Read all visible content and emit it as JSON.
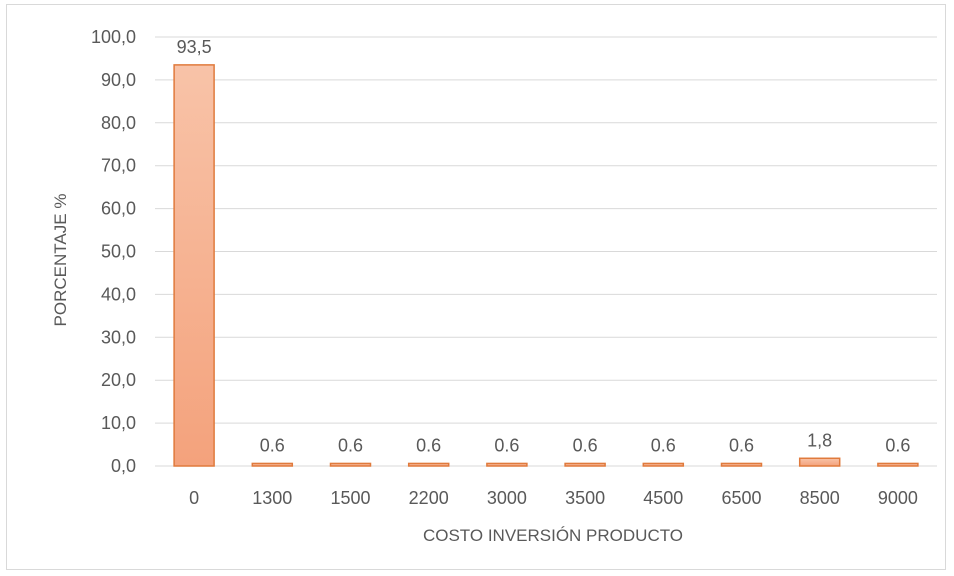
{
  "chart_data": {
    "type": "bar",
    "title": "",
    "xlabel": "COSTO INVERSIÓN PRODUCTO",
    "ylabel": "PORCENTAJE %",
    "categories": [
      "0",
      "1300",
      "1500",
      "2200",
      "3000",
      "3500",
      "4500",
      "6500",
      "8500",
      "9000"
    ],
    "values": [
      93.5,
      0.6,
      0.6,
      0.6,
      0.6,
      0.6,
      0.6,
      0.6,
      1.8,
      0.6
    ],
    "data_labels": [
      "93,5",
      "0.6",
      "0.6",
      "0.6",
      "0.6",
      "0.6",
      "0.6",
      "0.6",
      "1,8",
      "0.6"
    ],
    "ylim": [
      0,
      100
    ],
    "yticks": [
      0,
      10,
      20,
      30,
      40,
      50,
      60,
      70,
      80,
      90,
      100
    ],
    "ytick_labels": [
      "0,0",
      "10,0",
      "20,0",
      "30,0",
      "40,0",
      "50,0",
      "60,0",
      "70,0",
      "80,0",
      "90,0",
      "100,0"
    ],
    "grid": true,
    "legend": "none",
    "colors": {
      "bar_fill_top": "#f8c3a8",
      "bar_fill_bottom": "#f4a27c",
      "bar_stroke": "#e07a3c",
      "grid": "#d9d9d9",
      "axis": "#d9d9d9",
      "text": "#595959"
    }
  }
}
